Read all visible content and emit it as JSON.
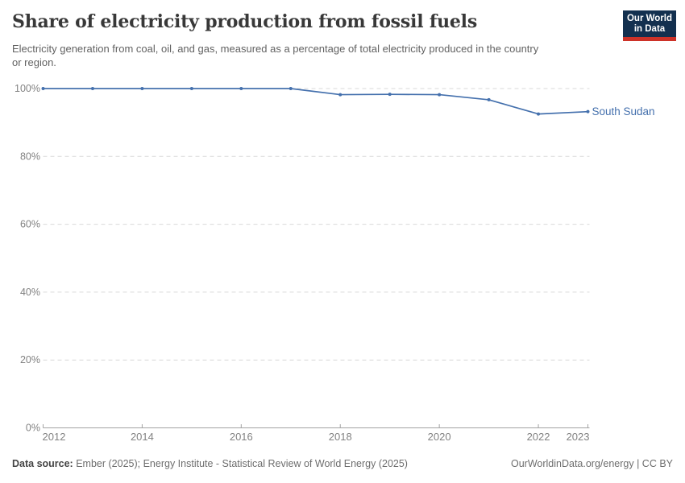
{
  "header": {
    "title": "Share of electricity production from fossil fuels",
    "subtitle": "Electricity generation from coal, oil, and gas, measured as a percentage of total electricity produced in the country or region."
  },
  "logo": {
    "line1": "Our World",
    "line2": "in Data",
    "bg_color": "#13304f",
    "accent_color": "#cd3228"
  },
  "chart_data": {
    "type": "line",
    "title": "Share of electricity production from fossil fuels",
    "x": [
      2012,
      2013,
      2014,
      2015,
      2016,
      2017,
      2018,
      2019,
      2020,
      2021,
      2022,
      2023
    ],
    "series": [
      {
        "name": "South Sudan",
        "color": "#4470ad",
        "values": [
          100,
          100,
          100,
          100,
          100,
          100,
          98.2,
          98.3,
          98.2,
          96.7,
          92.5,
          93.2
        ]
      }
    ],
    "x_ticks": [
      2012,
      2014,
      2016,
      2018,
      2020,
      2022,
      2023
    ],
    "y_ticks": [
      0,
      20,
      40,
      60,
      80,
      100
    ],
    "y_tick_suffix": "%",
    "xlim": [
      2012,
      2023
    ],
    "ylim": [
      0,
      100
    ],
    "grid": "horizontal-dashed",
    "legend": "end-of-line-label",
    "colors": {
      "grid": "#d9d9d9",
      "axis": "#a3a3a3",
      "tick_label": "#828282"
    }
  },
  "footer": {
    "datasource_label": "Data source:",
    "datasource_text": "Ember (2025); Energy Institute - Statistical Review of World Energy (2025)",
    "license_text": "OurWorldinData.org/energy | CC BY"
  }
}
